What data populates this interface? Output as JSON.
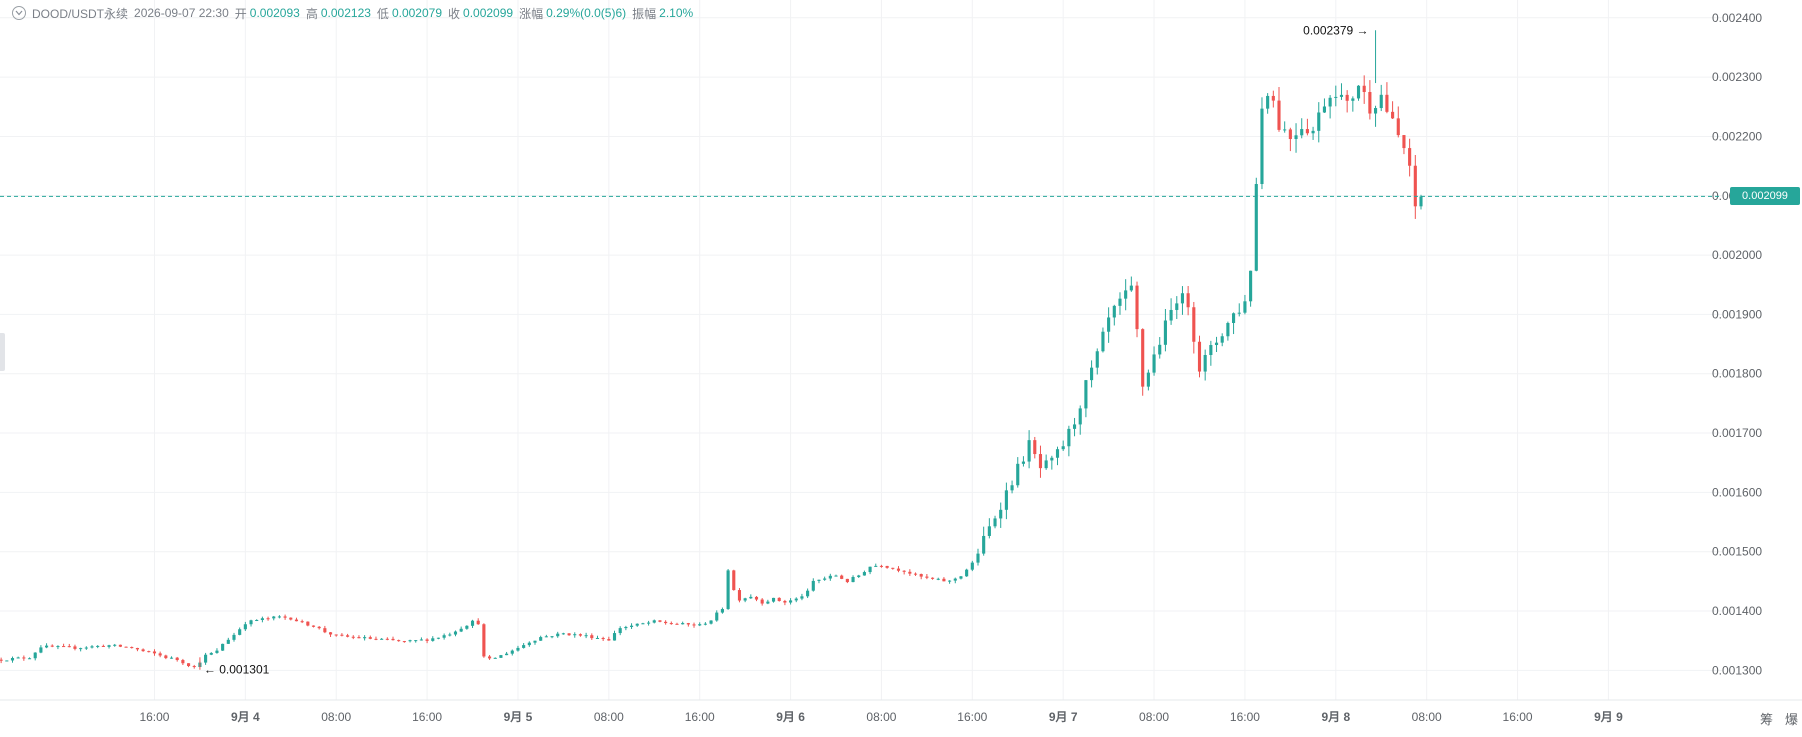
{
  "legend": {
    "symbol": "DOOD/USDT永续",
    "time": "2026-09-07 22:30",
    "open_label": "开",
    "open": "0.002093",
    "high_label": "高",
    "high": "0.002123",
    "low_label": "低",
    "low": "0.002079",
    "close_label": "收",
    "close": "0.002099",
    "change_label": "涨幅",
    "change": "0.29%(0.0(5)6)",
    "amplitude_label": "振幅",
    "amplitude": "2.10%"
  },
  "last_price_tag": "0.002099",
  "tools": {
    "chip": "筹",
    "liquidation": "爆"
  },
  "colors": {
    "up": "#26a69a",
    "down": "#ef5350",
    "grid": "#f1f2f4",
    "axis_text": "#5f6368"
  },
  "chart_data": {
    "type": "candlestick",
    "y_axis": {
      "position": "right",
      "range": [
        0.00125,
        0.00243
      ],
      "ticks": [
        {
          "value": 0.0024,
          "label": "0.002400"
        },
        {
          "value": 0.0023,
          "label": "0.002300"
        },
        {
          "value": 0.0022,
          "label": "0.002200"
        },
        {
          "value": 0.0021,
          "label": "0.002100"
        },
        {
          "value": 0.002,
          "label": "0.002000"
        },
        {
          "value": 0.0019,
          "label": "0.001900"
        },
        {
          "value": 0.0018,
          "label": "0.001800"
        },
        {
          "value": 0.0017,
          "label": "0.001700"
        },
        {
          "value": 0.0016,
          "label": "0.001600"
        },
        {
          "value": 0.0015,
          "label": "0.001500"
        },
        {
          "value": 0.0014,
          "label": "0.001400"
        },
        {
          "value": 0.0013,
          "label": "0.001300"
        }
      ]
    },
    "x_axis": {
      "unit": "hours since 2026-09-03 12:00",
      "range": [
        -9.6,
        142
      ],
      "ticks": [
        {
          "value": 4,
          "label": "16:00",
          "bold": false
        },
        {
          "value": 12,
          "label": "9月 4",
          "bold": true
        },
        {
          "value": 20,
          "label": "08:00",
          "bold": false
        },
        {
          "value": 28,
          "label": "16:00",
          "bold": false
        },
        {
          "value": 36,
          "label": "9月 5",
          "bold": true
        },
        {
          "value": 44,
          "label": "08:00",
          "bold": false
        },
        {
          "value": 52,
          "label": "16:00",
          "bold": false
        },
        {
          "value": 60,
          "label": "9月 6",
          "bold": true
        },
        {
          "value": 68,
          "label": "08:00",
          "bold": false
        },
        {
          "value": 76,
          "label": "16:00",
          "bold": false
        },
        {
          "value": 84,
          "label": "9月 7",
          "bold": true
        },
        {
          "value": 92,
          "label": "08:00",
          "bold": false
        },
        {
          "value": 100,
          "label": "16:00",
          "bold": false
        },
        {
          "value": 108,
          "label": "9月 8",
          "bold": true
        },
        {
          "value": 116,
          "label": "08:00",
          "bold": false
        },
        {
          "value": 124,
          "label": "16:00",
          "bold": false
        },
        {
          "value": 132,
          "label": "9月 9",
          "bold": true
        }
      ]
    },
    "interval_hours": 0.5,
    "series_close_anchors": [
      [
        -9.5,
        0.001318
      ],
      [
        -7,
        0.001322
      ],
      [
        -6,
        0.00134
      ],
      [
        -3,
        0.001338
      ],
      [
        0,
        0.001342
      ],
      [
        2,
        0.001338
      ],
      [
        3,
        0.001332
      ],
      [
        4,
        0.001328
      ],
      [
        5,
        0.001322
      ],
      [
        6,
        0.001318
      ],
      [
        7.5,
        0.001305
      ],
      [
        8.5,
        0.001325
      ],
      [
        9.5,
        0.001332
      ],
      [
        10,
        0.001345
      ],
      [
        11,
        0.00136
      ],
      [
        12,
        0.00138
      ],
      [
        13,
        0.001385
      ],
      [
        15,
        0.00139
      ],
      [
        16,
        0.001388
      ],
      [
        17,
        0.00138
      ],
      [
        18,
        0.001375
      ],
      [
        19,
        0.001365
      ],
      [
        20,
        0.001358
      ],
      [
        22,
        0.001355
      ],
      [
        24,
        0.001352
      ],
      [
        26,
        0.001348
      ],
      [
        28,
        0.001352
      ],
      [
        29,
        0.001356
      ],
      [
        30,
        0.001362
      ],
      [
        31,
        0.001372
      ],
      [
        32,
        0.001382
      ],
      [
        32.5,
        0.00138
      ],
      [
        33,
        0.001322
      ],
      [
        33.5,
        0.001318
      ],
      [
        34.5,
        0.001325
      ],
      [
        36,
        0.001338
      ],
      [
        37,
        0.001348
      ],
      [
        38,
        0.001356
      ],
      [
        40,
        0.001362
      ],
      [
        42,
        0.001358
      ],
      [
        44,
        0.001352
      ],
      [
        45,
        0.001372
      ],
      [
        46,
        0.001375
      ],
      [
        48,
        0.001382
      ],
      [
        50,
        0.001378
      ],
      [
        52,
        0.001376
      ],
      [
        53,
        0.001385
      ],
      [
        54,
        0.001405
      ],
      [
        54.5,
        0.00147
      ],
      [
        55,
        0.001435
      ],
      [
        55.5,
        0.00142
      ],
      [
        56.5,
        0.001425
      ],
      [
        57.5,
        0.001415
      ],
      [
        58.5,
        0.00142
      ],
      [
        59.5,
        0.001415
      ],
      [
        60.5,
        0.00142
      ],
      [
        61.5,
        0.001432
      ],
      [
        62,
        0.00145
      ],
      [
        63,
        0.001455
      ],
      [
        64,
        0.00146
      ],
      [
        65,
        0.00145
      ],
      [
        66,
        0.00146
      ],
      [
        67,
        0.001475
      ],
      [
        68,
        0.001478
      ],
      [
        69,
        0.001472
      ],
      [
        70,
        0.001468
      ],
      [
        71,
        0.00146
      ],
      [
        72,
        0.001455
      ],
      [
        73,
        0.001452
      ],
      [
        74,
        0.00145
      ],
      [
        75,
        0.00146
      ],
      [
        76,
        0.00148
      ],
      [
        77,
        0.00152
      ],
      [
        78,
        0.00156
      ],
      [
        79,
        0.0016
      ],
      [
        80,
        0.00164
      ],
      [
        81,
        0.00168
      ],
      [
        81.5,
        0.00166
      ],
      [
        82,
        0.00164
      ],
      [
        83,
        0.00165
      ],
      [
        84,
        0.00168
      ],
      [
        85,
        0.00172
      ],
      [
        86,
        0.00178
      ],
      [
        87,
        0.00183
      ],
      [
        88,
        0.00189
      ],
      [
        89,
        0.00192
      ],
      [
        90,
        0.00194
      ],
      [
        90.5,
        0.00187
      ],
      [
        91,
        0.00178
      ],
      [
        92,
        0.00183
      ],
      [
        93,
        0.00188
      ],
      [
        94,
        0.00193
      ],
      [
        95,
        0.00192
      ],
      [
        96,
        0.00181
      ],
      [
        97,
        0.00184
      ],
      [
        98,
        0.00187
      ],
      [
        99,
        0.0019
      ],
      [
        100,
        0.00192
      ],
      [
        100.5,
        0.00198
      ],
      [
        101,
        0.00212
      ],
      [
        101.5,
        0.00225
      ],
      [
        102,
        0.00228
      ],
      [
        102.5,
        0.00226
      ],
      [
        103,
        0.00222
      ],
      [
        104,
        0.0022
      ],
      [
        105,
        0.00222
      ],
      [
        106,
        0.00221
      ],
      [
        107,
        0.00226
      ],
      [
        108,
        0.00228
      ],
      [
        109,
        0.00225
      ],
      [
        110,
        0.00229
      ],
      [
        111,
        0.00225
      ],
      [
        112,
        0.00227
      ],
      [
        113,
        0.00222
      ],
      [
        114,
        0.00218
      ],
      [
        114.5,
        0.00214
      ],
      [
        115,
        0.00208
      ],
      [
        115.5,
        0.0021
      ]
    ],
    "high": {
      "value": 0.002379,
      "label": "0.002379",
      "x": 111.5
    },
    "low": {
      "value": 0.001301,
      "label": "0.001301",
      "x": 8
    },
    "last_price": 0.002099
  }
}
